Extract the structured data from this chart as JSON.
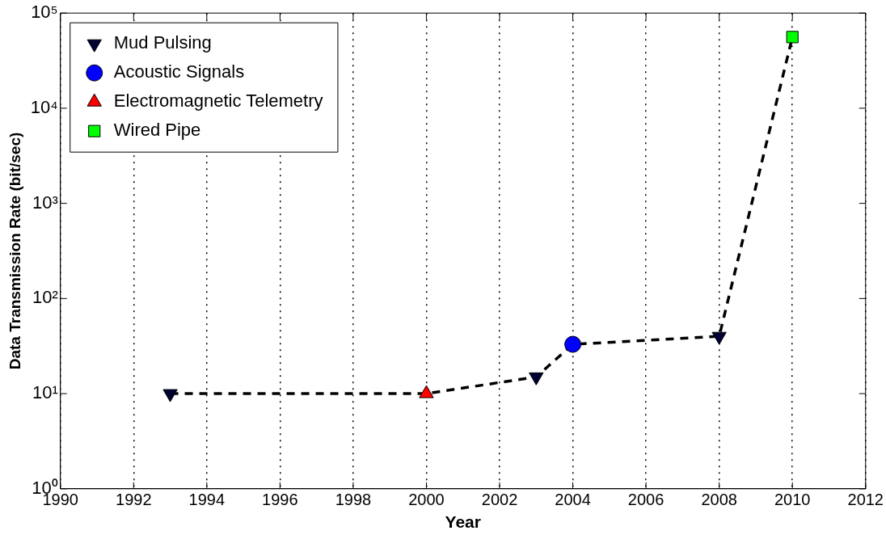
{
  "chart_data": {
    "type": "scatter",
    "xlabel": "Year",
    "ylabel": "Data Transmission Rate (bit/sec)",
    "xlim": [
      1990,
      2012
    ],
    "xticks": [
      1990,
      1992,
      1994,
      1996,
      1998,
      2000,
      2002,
      2004,
      2006,
      2008,
      2010,
      2012
    ],
    "ylim": [
      1,
      100000
    ],
    "yticks": [
      {
        "value": 1,
        "label": "10⁰"
      },
      {
        "value": 10,
        "label": "10¹"
      },
      {
        "value": 100,
        "label": "10²"
      },
      {
        "value": 1000,
        "label": "10³"
      },
      {
        "value": 10000,
        "label": "10⁴"
      },
      {
        "value": 100000,
        "label": "10⁵"
      }
    ],
    "log": "y",
    "grid": "x",
    "legend": "top left",
    "series": [
      {
        "type": "line",
        "color": "#000000",
        "line_style": "dashed",
        "marker": "none",
        "x": [
          1993,
          2000,
          2003,
          2004,
          2008,
          2010
        ],
        "values": [
          10,
          10,
          15,
          33,
          40,
          56000
        ]
      },
      {
        "name": "Mud Pulsing",
        "color": "#000033",
        "marker": "triangle_down",
        "x": [
          1993,
          2003,
          2008
        ],
        "values": [
          10,
          15,
          40
        ]
      },
      {
        "name": "Acoustic Signals",
        "color": "#0000ff",
        "marker": "circle",
        "x": [
          2004
        ],
        "values": [
          33
        ]
      },
      {
        "name": "Electromagnetic Telemetry",
        "color": "#ff0000",
        "marker": "triangle",
        "x": [
          2000
        ],
        "values": [
          10
        ]
      },
      {
        "name": "Wired Pipe",
        "color": "#00ff00",
        "marker": "square",
        "x": [
          2010
        ],
        "values": [
          56000
        ]
      }
    ]
  }
}
